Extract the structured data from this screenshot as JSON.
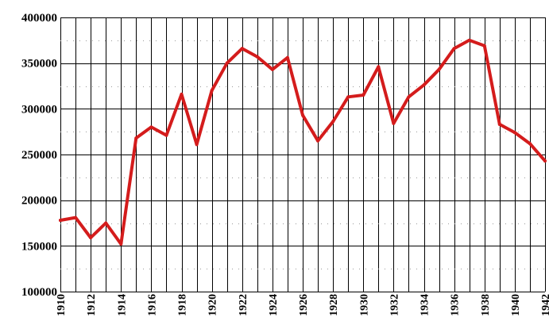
{
  "chart_data": {
    "type": "line",
    "title": "",
    "xlabel": "",
    "ylabel": "",
    "xlim": [
      1910,
      1942
    ],
    "ylim": [
      100000,
      400000
    ],
    "y_ticks": [
      100000,
      150000,
      200000,
      250000,
      300000,
      350000,
      400000
    ],
    "x_tick_labels": [
      "1910",
      "1912",
      "1914",
      "1916",
      "1918",
      "1920",
      "1922",
      "1924",
      "1926",
      "1928",
      "1930",
      "1932",
      "1934",
      "1936",
      "1938",
      "1940",
      "1942"
    ],
    "grid": true,
    "legend": "none",
    "colors": {
      "line": "#d41c1c",
      "grid": "#000000",
      "background": "#ffffff"
    },
    "series": [
      {
        "x": [
          1910,
          1911,
          1912,
          1913,
          1914,
          1915,
          1916,
          1917,
          1918,
          1919,
          1920,
          1921,
          1922,
          1923,
          1924,
          1925,
          1926,
          1927,
          1928,
          1929,
          1930,
          1931,
          1932,
          1933,
          1934,
          1935,
          1936,
          1937,
          1938,
          1939,
          1940,
          1941,
          1942
        ],
        "values": [
          178000,
          181000,
          159000,
          175000,
          152000,
          268000,
          280000,
          271000,
          316000,
          261000,
          320000,
          350000,
          366000,
          357000,
          343000,
          356000,
          293000,
          265000,
          286000,
          313000,
          315000,
          346000,
          284000,
          313000,
          326000,
          343000,
          366000,
          375000,
          369000,
          283000,
          274000,
          262000,
          243000
        ]
      }
    ]
  }
}
